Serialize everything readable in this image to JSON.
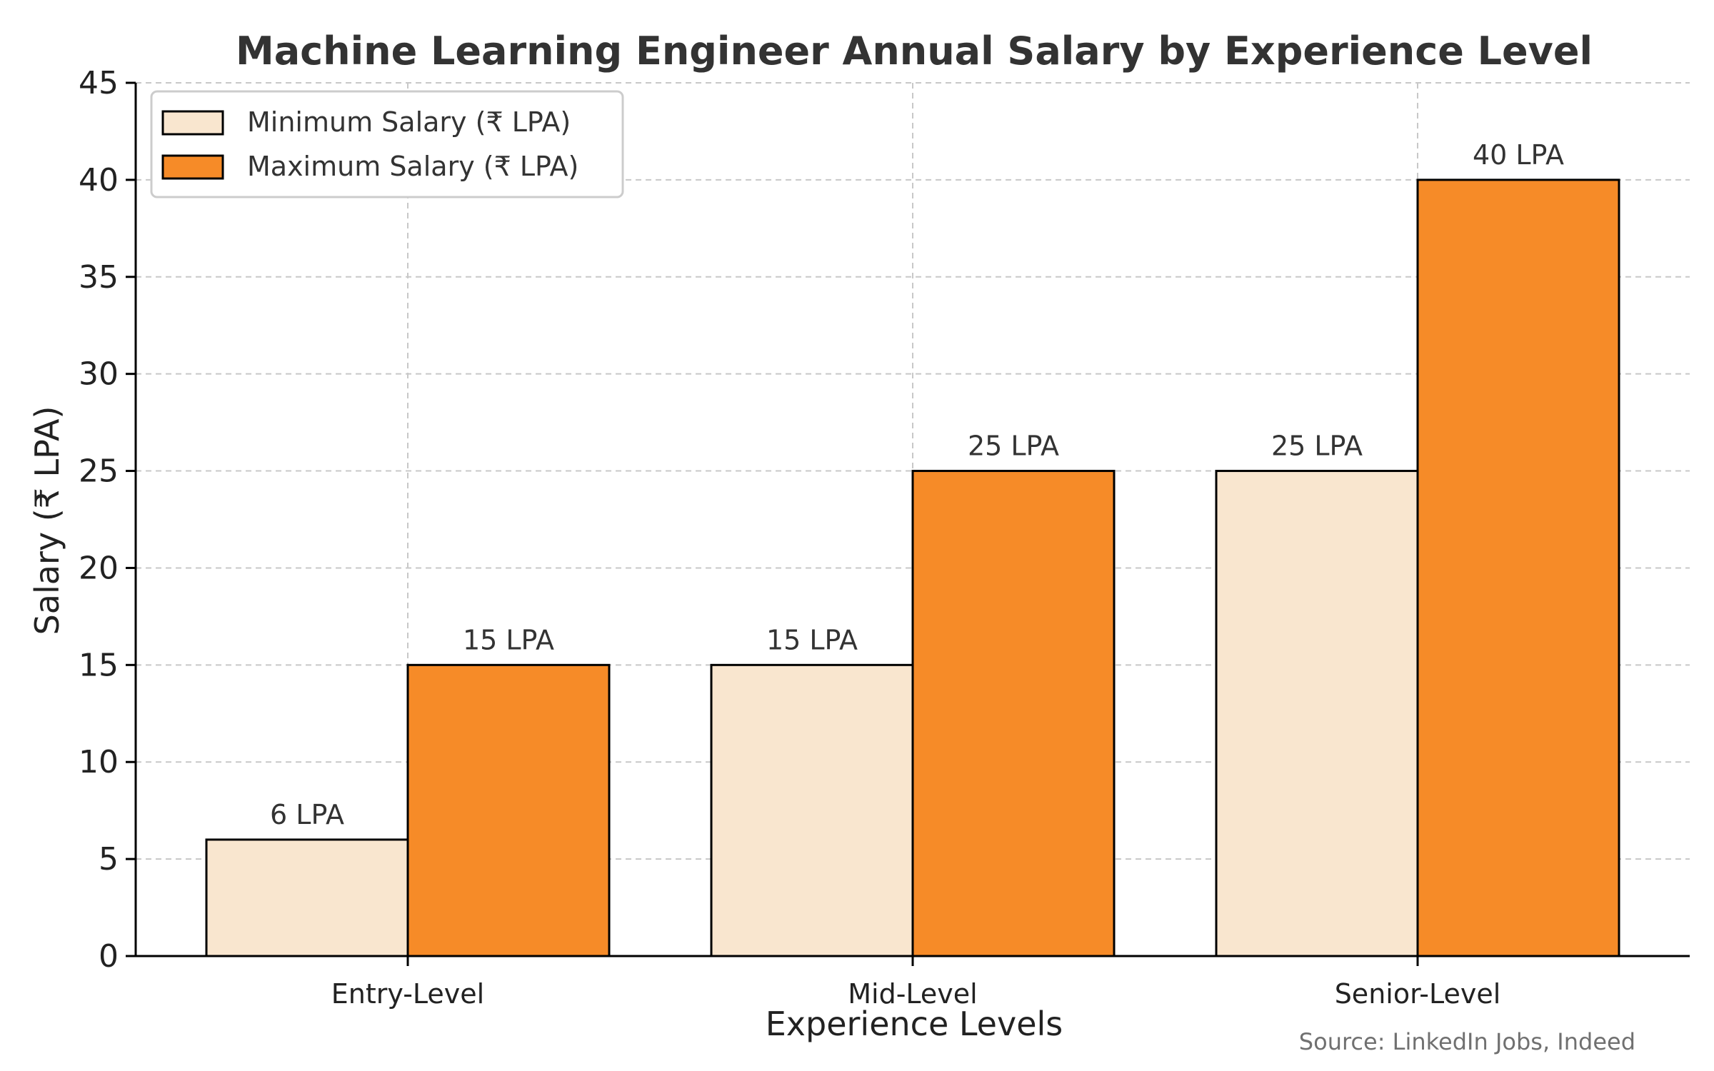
{
  "chart_data": {
    "type": "bar",
    "title": "Machine Learning Engineer Annual Salary by Experience Level",
    "xlabel": "Experience Levels",
    "ylabel": "Salary (₹ LPA)",
    "categories": [
      "Entry-Level",
      "Mid-Level",
      "Senior-Level"
    ],
    "series": [
      {
        "name": "Minimum Salary (₹ LPA)",
        "values": [
          6,
          15,
          25
        ],
        "labels": [
          "6 LPA",
          "15 LPA",
          "25 LPA"
        ],
        "color": "#f9e6cf"
      },
      {
        "name": "Maximum Salary (₹ LPA)",
        "values": [
          15,
          25,
          40
        ],
        "labels": [
          "15 LPA",
          "25 LPA",
          "40 LPA"
        ],
        "color": "#f68b28"
      }
    ],
    "ylim": [
      0,
      45
    ],
    "yticks": [
      0,
      5,
      10,
      15,
      20,
      25,
      30,
      35,
      40,
      45
    ],
    "grid": true,
    "legend_position": "top-left",
    "source": "Source: LinkedIn Jobs, Indeed"
  }
}
